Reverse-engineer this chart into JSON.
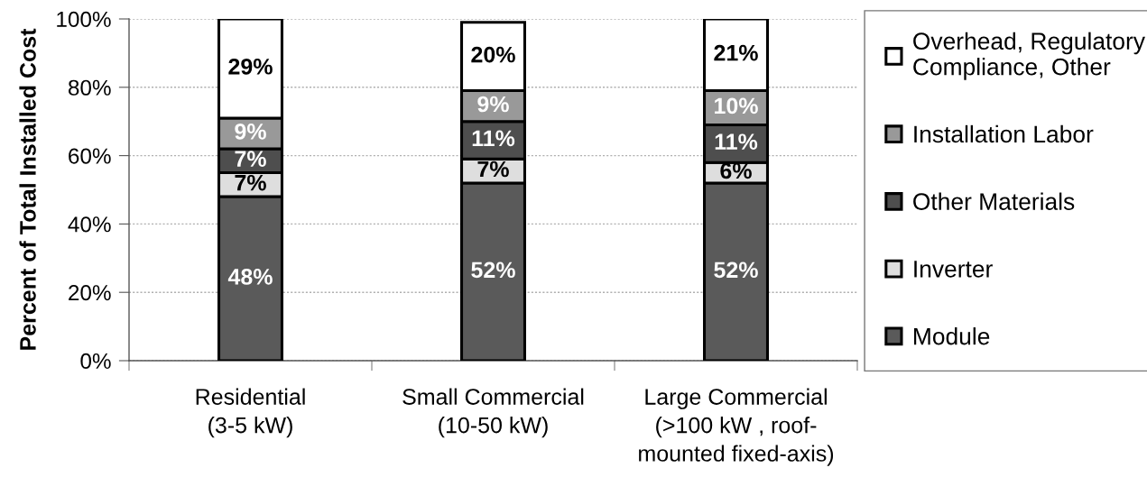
{
  "chart_data": {
    "type": "bar",
    "stacked": true,
    "categories": [
      "Residential\n(3-5 kW)",
      "Small Commercial\n(10-50 kW)",
      "Large Commercial\n(>100 kW , roof-\nmounted fixed-axis)"
    ],
    "ylabel": "Percent of Total Installed Cost",
    "ylim": [
      0,
      100
    ],
    "yticks": [
      {
        "value": 0,
        "label": "0%"
      },
      {
        "value": 20,
        "label": "20%"
      },
      {
        "value": 40,
        "label": "40%"
      },
      {
        "value": 60,
        "label": "60%"
      },
      {
        "value": 80,
        "label": "80%"
      },
      {
        "value": 100,
        "label": "100%"
      }
    ],
    "grid": "y",
    "legend": "right",
    "series": [
      {
        "name": "Module",
        "color": "#5a5a5a",
        "values": [
          48,
          52,
          52
        ],
        "value_labels": [
          "48%",
          "52%",
          "52%"
        ]
      },
      {
        "name": "Inverter",
        "color": "#dedede",
        "values": [
          7,
          7,
          6
        ],
        "value_labels": [
          "7%",
          "7%",
          "6%"
        ]
      },
      {
        "name": "Other Materials",
        "color": "#4e4e4e",
        "values": [
          7,
          11,
          11
        ],
        "value_labels": [
          "7%",
          "11%",
          "11%"
        ]
      },
      {
        "name": "Installation Labor",
        "color": "#999999",
        "values": [
          9,
          9,
          10
        ],
        "value_labels": [
          "9%",
          "9%",
          "10%"
        ]
      },
      {
        "name": "Overhead, Regulatory\nCompliance, Other",
        "color": "#ffffff",
        "values": [
          29,
          20,
          21
        ],
        "value_labels": [
          "29%",
          "20%",
          "21%"
        ]
      }
    ]
  }
}
